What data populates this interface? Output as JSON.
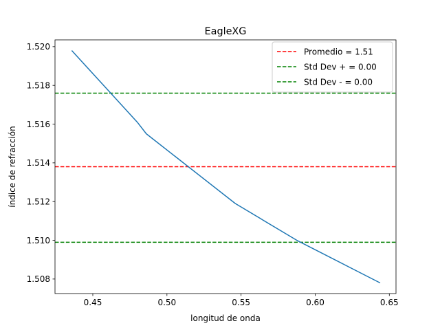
{
  "chart_data": {
    "type": "line",
    "title": "EagleXG",
    "xlabel": "longitud de onda",
    "ylabel": "índice de refracción",
    "xlim": [
      0.4245,
      0.6545
    ],
    "ylim": [
      1.50725,
      1.52035
    ],
    "xticks": [
      0.45,
      0.5,
      0.55,
      0.6,
      0.65
    ],
    "xtick_labels": [
      "0.45",
      "0.50",
      "0.55",
      "0.60",
      "0.65"
    ],
    "yticks": [
      1.508,
      1.51,
      1.512,
      1.514,
      1.516,
      1.518,
      1.52
    ],
    "ytick_labels": [
      "1.508",
      "1.510",
      "1.512",
      "1.514",
      "1.516",
      "1.518",
      "1.520"
    ],
    "grid": false,
    "legend_position": "upper right",
    "series": [
      {
        "color": "#1f77b4",
        "x": [
          0.4358,
          0.48,
          0.4861,
          0.5461,
          0.5876,
          0.6438
        ],
        "y": [
          1.5198,
          1.5161,
          1.5155,
          1.5119,
          1.51,
          1.5078
        ]
      }
    ],
    "hlines": [
      {
        "name": "Promedio = 1.51",
        "y": 1.5138,
        "color": "#ff0000",
        "style": "dashed"
      },
      {
        "name": "Std Dev + = 0.00",
        "y": 1.5176,
        "color": "#008000",
        "style": "dashed"
      },
      {
        "name": "Std Dev - = 0.00",
        "y": 1.5099,
        "color": "#008000",
        "style": "dashed"
      }
    ]
  }
}
